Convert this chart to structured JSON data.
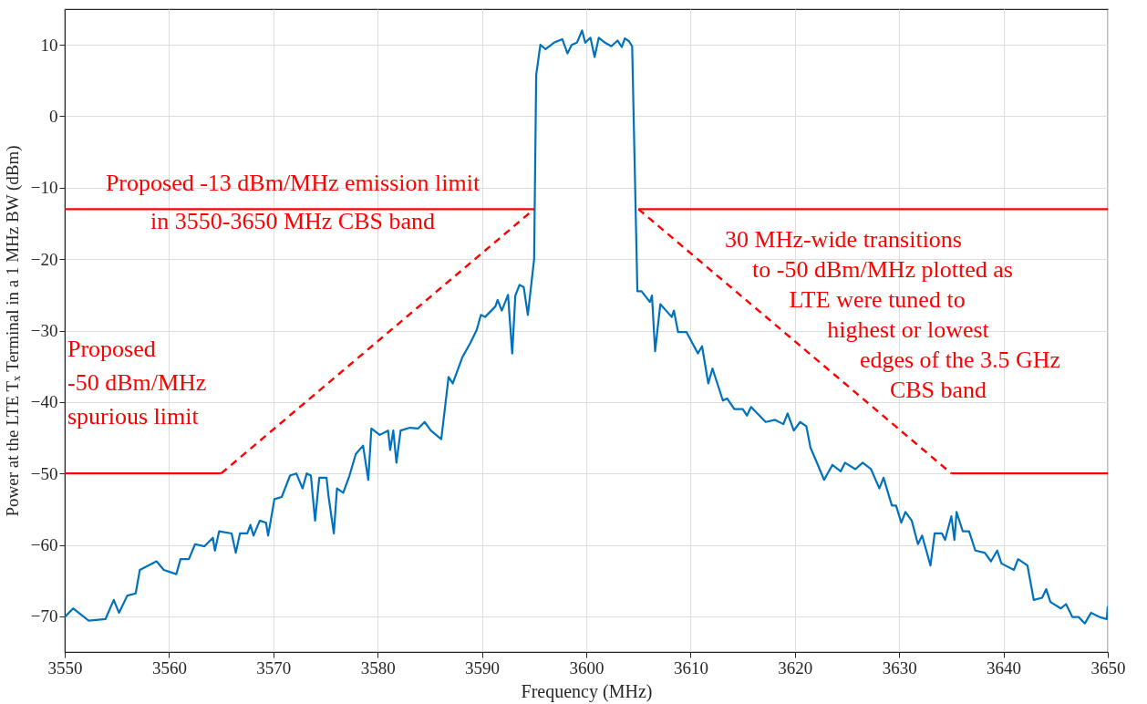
{
  "chart_data": {
    "type": "line",
    "xlabel": "Frequency (MHz)",
    "ylabel": "Power at the LTE Tₓ Terminal in a 1 MHz BW (dBm)",
    "xlim": [
      3550,
      3650
    ],
    "xticks": [
      3550,
      3560,
      3570,
      3580,
      3590,
      3600,
      3610,
      3620,
      3630,
      3640,
      3650
    ],
    "ylim": [
      -75,
      15
    ],
    "yticks": [
      -70,
      -60,
      -50,
      -40,
      -30,
      -20,
      -10,
      0,
      10
    ],
    "grid": true,
    "marker": "none",
    "series": [
      {
        "color": "#0072bd",
        "line_style": "solid",
        "x": [
          3550.0,
          3550.8,
          3552.3,
          3553.9,
          3554.7,
          3555.2,
          3556.0,
          3556.8,
          3557.2,
          3558.8,
          3559.5,
          3560.7,
          3561.1,
          3561.9,
          3562.5,
          3563.4,
          3564.2,
          3564.4,
          3564.8,
          3566.0,
          3566.4,
          3566.8,
          3567.5,
          3567.8,
          3568.1,
          3568.7,
          3569.3,
          3569.5,
          3570.1,
          3570.8,
          3571.6,
          3572.2,
          3572.8,
          3573.2,
          3573.6,
          3574.0,
          3574.4,
          3575.1,
          3575.3,
          3575.8,
          3576.1,
          3576.7,
          3577.3,
          3577.9,
          3578.6,
          3579.1,
          3579.4,
          3580.2,
          3581.0,
          3581.2,
          3581.5,
          3581.8,
          3582.2,
          3583.1,
          3583.9,
          3584.5,
          3585.1,
          3586.1,
          3586.8,
          3587.2,
          3588.1,
          3588.9,
          3589.5,
          3589.9,
          3590.3,
          3591.3,
          3591.5,
          3591.9,
          3592.5,
          3592.9,
          3593.2,
          3593.6,
          3594.0,
          3594.4,
          3595.0,
          3595.2,
          3595.6,
          3596.1,
          3596.9,
          3597.7,
          3598.2,
          3598.6,
          3599.1,
          3599.6,
          3599.9,
          3600.4,
          3600.8,
          3601.2,
          3601.8,
          3602.4,
          3603.0,
          3603.4,
          3603.7,
          3604.1,
          3604.4,
          3604.9,
          3605.3,
          3606.1,
          3606.3,
          3606.6,
          3607.1,
          3608.2,
          3608.4,
          3608.8,
          3609.6,
          3610.7,
          3611.1,
          3611.7,
          3612.1,
          3613.1,
          3613.5,
          3614.2,
          3615.0,
          3615.4,
          3615.8,
          3617.2,
          3618.1,
          3618.9,
          3619.3,
          3619.9,
          3620.5,
          3621.1,
          3621.5,
          3622.2,
          3622.8,
          3623.6,
          3624.4,
          3624.8,
          3625.8,
          3626.5,
          3627.3,
          3628.1,
          3628.5,
          3629.3,
          3629.7,
          3630.2,
          3630.6,
          3631.2,
          3631.8,
          3632.2,
          3633.0,
          3633.4,
          3634.1,
          3634.4,
          3635.0,
          3635.3,
          3635.5,
          3636.1,
          3636.7,
          3637.3,
          3638.2,
          3638.8,
          3639.4,
          3639.8,
          3641.0,
          3641.4,
          3642.3,
          3642.9,
          3643.7,
          3644.1,
          3644.5,
          3645.5,
          3646.0,
          3646.6,
          3647.2,
          3647.8,
          3648.4,
          3649.2,
          3649.9,
          3650.0
        ],
        "values": [
          -70.1,
          -68.9,
          -70.6,
          -70.4,
          -67.7,
          -69.5,
          -67.1,
          -66.8,
          -63.5,
          -62.3,
          -63.5,
          -64.1,
          -62.0,
          -62.0,
          -59.9,
          -60.2,
          -59.0,
          -60.8,
          -58.1,
          -58.4,
          -61.1,
          -58.4,
          -58.4,
          -57.2,
          -58.7,
          -56.6,
          -56.9,
          -58.7,
          -53.6,
          -53.3,
          -50.3,
          -50.0,
          -52.1,
          -50.0,
          -50.3,
          -56.6,
          -50.6,
          -50.6,
          -53.3,
          -58.4,
          -52.1,
          -52.7,
          -50.3,
          -47.3,
          -46.1,
          -50.9,
          -43.7,
          -44.6,
          -44.0,
          -46.7,
          -44.0,
          -48.5,
          -44.0,
          -43.6,
          -43.7,
          -42.8,
          -44.0,
          -45.2,
          -36.5,
          -37.4,
          -33.8,
          -31.7,
          -29.9,
          -27.8,
          -28.1,
          -26.6,
          -25.7,
          -27.2,
          -25.0,
          -33.2,
          -25.1,
          -23.6,
          -23.9,
          -27.8,
          -20.0,
          5.8,
          10.0,
          9.4,
          10.3,
          10.8,
          8.8,
          10.0,
          10.3,
          12.0,
          10.3,
          11.0,
          8.3,
          11.0,
          10.3,
          9.8,
          10.6,
          9.7,
          10.9,
          10.5,
          9.8,
          -24.5,
          -24.5,
          -26.0,
          -25.1,
          -32.9,
          -26.3,
          -28.1,
          -27.2,
          -30.2,
          -30.2,
          -33.2,
          -32.2,
          -37.4,
          -35.3,
          -39.8,
          -39.5,
          -41.0,
          -41.0,
          -41.9,
          -40.7,
          -42.8,
          -42.5,
          -43.1,
          -41.6,
          -44.0,
          -42.8,
          -43.4,
          -46.4,
          -48.8,
          -50.9,
          -48.8,
          -49.7,
          -48.5,
          -49.4,
          -48.5,
          -49.4,
          -52.1,
          -50.6,
          -54.5,
          -54.5,
          -56.9,
          -55.4,
          -56.6,
          -59.9,
          -58.7,
          -62.9,
          -58.4,
          -58.4,
          -59.3,
          -56.0,
          -59.3,
          -55.4,
          -58.1,
          -58.1,
          -60.8,
          -61.1,
          -62.3,
          -60.8,
          -62.6,
          -63.5,
          -62.0,
          -62.9,
          -67.7,
          -67.4,
          -66.2,
          -68.0,
          -68.9,
          -68.3,
          -70.1,
          -70.1,
          -71.0,
          -69.5,
          -70.1,
          -70.4,
          -68.6
        ]
      },
      {
        "color": "#ff0000",
        "line_style": "solid",
        "x": [
          3550,
          3595,
          3600,
          3605,
          3650
        ],
        "values": [
          -13,
          -13,
          null,
          -13,
          -13
        ]
      },
      {
        "color": "#ff0000",
        "line_style": "solid",
        "x": [
          3550,
          3565,
          3600,
          3635,
          3650
        ],
        "values": [
          -50,
          -50,
          null,
          -50,
          -50
        ]
      },
      {
        "color": "#ff0000",
        "line_style": "dashed",
        "x": [
          3565,
          3595,
          3600,
          3605,
          3635
        ],
        "values": [
          -50,
          -13,
          null,
          -13,
          -50
        ]
      }
    ],
    "annotations": [
      "Proposed -13 dBm/MHz emission limit\nin 3550-3650 MHz CBS band",
      "Proposed\n-50 dBm/MHz\nspurious limit",
      "30 MHz-wide transitions\nto -50 dBm/MHz plotted as\nLTE were tuned to\nhighest or lowest\nedges of the 3.5 GHz\nCBS band"
    ]
  }
}
